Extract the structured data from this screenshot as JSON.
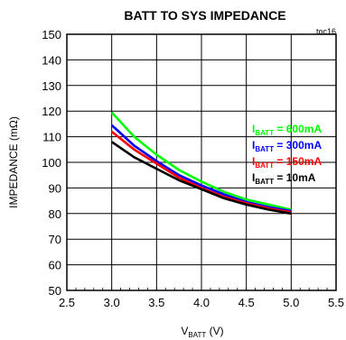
{
  "chart_data": {
    "type": "line",
    "title": "BATT TO SYS IMPEDANCE",
    "code": "toc16",
    "xlabel": {
      "main": "V",
      "sub": "BATT",
      "unit": " (V)"
    },
    "ylabel": "IMPEDANCE (mΩ)",
    "xlim": [
      2.5,
      5.5
    ],
    "ylim": [
      50,
      150
    ],
    "xticks": [
      "2.5",
      "3.0",
      "3.5",
      "4.0",
      "4.5",
      "5.0",
      "5.5"
    ],
    "yticks": [
      "50",
      "60",
      "70",
      "80",
      "90",
      "100",
      "110",
      "120",
      "130",
      "140",
      "150"
    ],
    "grid": true,
    "legend_position": "right",
    "series": [
      {
        "name": "600mA",
        "label_main": "I",
        "label_sub": "BATT",
        "label_rest": " = 600mA",
        "color": "#00ff00",
        "x": [
          3.0,
          3.25,
          3.5,
          3.75,
          4.0,
          4.25,
          4.5,
          4.75,
          5.0
        ],
        "y": [
          119.5,
          110.0,
          103.0,
          97.0,
          92.5,
          88.5,
          85.5,
          83.5,
          81.5
        ]
      },
      {
        "name": "300mA",
        "label_main": "I",
        "label_sub": "BATT",
        "label_rest": " = 300mA",
        "color": "#0000ff",
        "x": [
          3.0,
          3.25,
          3.5,
          3.75,
          4.0,
          4.25,
          4.5,
          4.75,
          5.0
        ],
        "y": [
          114.5,
          106.5,
          100.5,
          95.0,
          91.0,
          87.5,
          84.5,
          82.5,
          81.0
        ]
      },
      {
        "name": "150mA",
        "label_main": "I",
        "label_sub": "BATT",
        "label_rest": " = 150mA",
        "color": "#ff0000",
        "x": [
          3.0,
          3.25,
          3.5,
          3.75,
          4.0,
          4.25,
          4.5,
          4.75,
          5.0
        ],
        "y": [
          112.0,
          105.0,
          99.5,
          94.0,
          90.0,
          86.5,
          84.0,
          82.0,
          80.5
        ]
      },
      {
        "name": "10mA",
        "label_main": "I",
        "label_sub": "BATT",
        "label_rest": " = 10mA",
        "color": "#000000",
        "x": [
          3.0,
          3.25,
          3.5,
          3.75,
          4.0,
          4.25,
          4.5,
          4.75,
          5.0
        ],
        "y": [
          108.0,
          102.0,
          97.5,
          93.0,
          89.5,
          86.0,
          83.5,
          81.5,
          80.0
        ]
      }
    ]
  }
}
